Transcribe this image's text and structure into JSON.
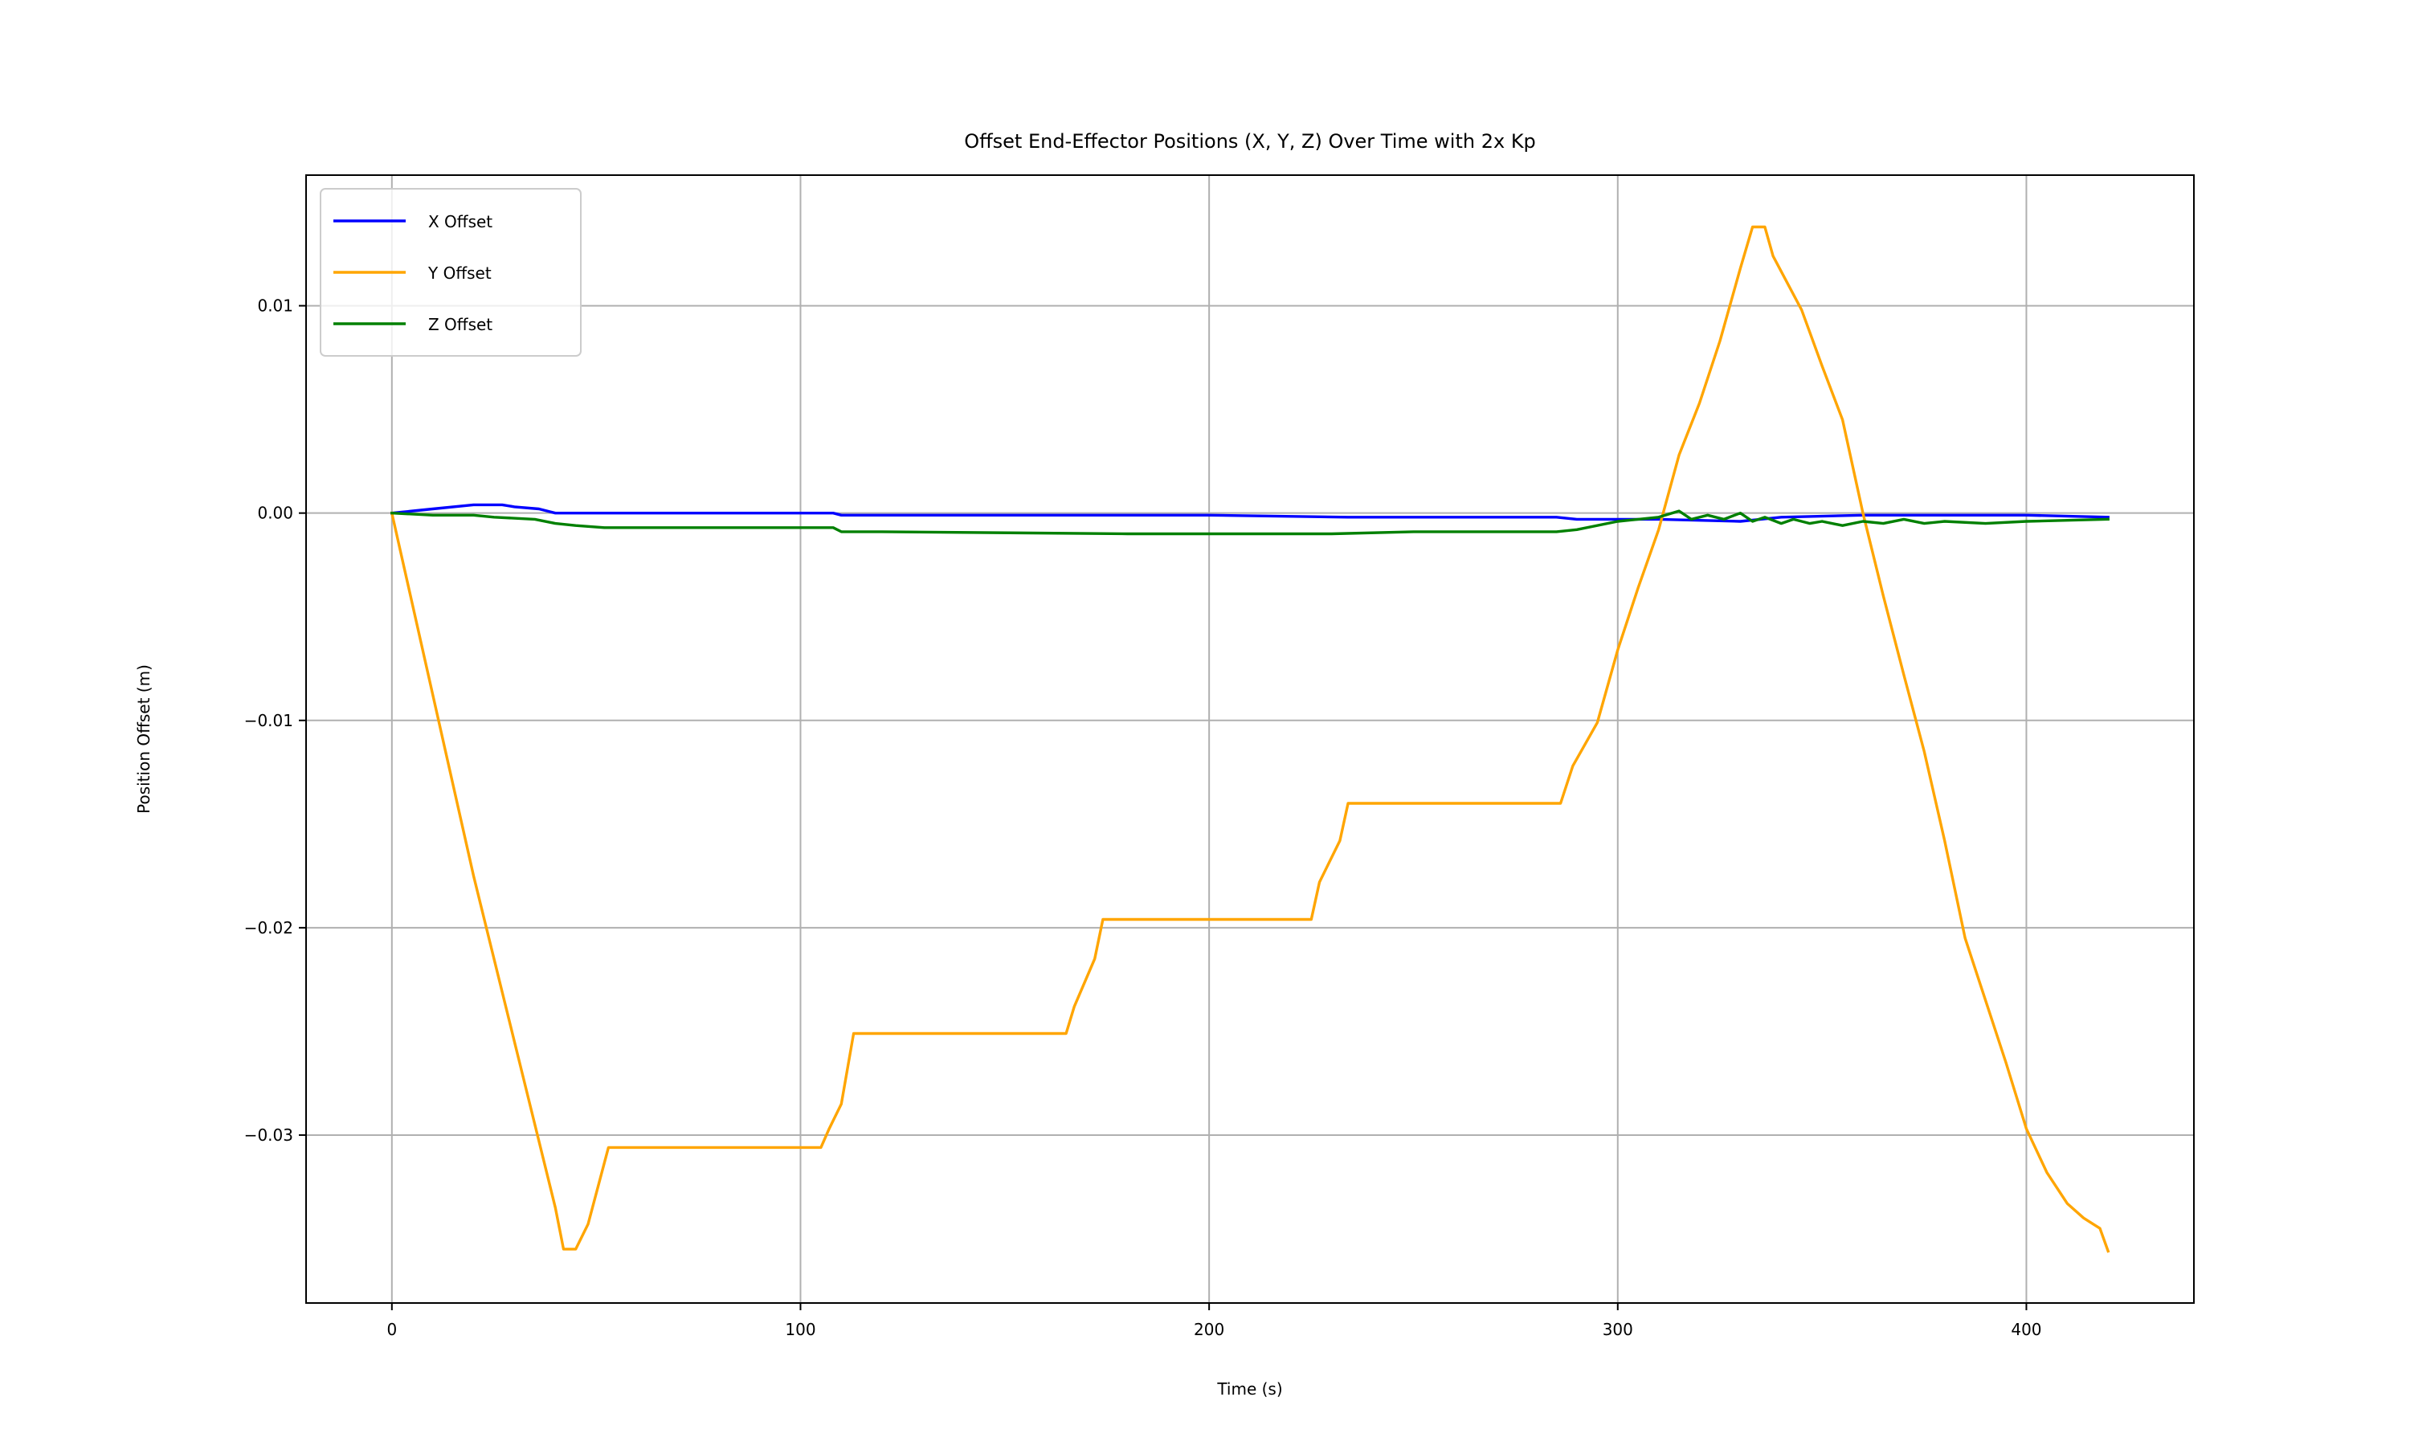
{
  "chart_data": {
    "type": "line",
    "title": "Offset End-Effector Positions (X, Y, Z) Over Time with 2x Kp",
    "xlabel": "Time (s)",
    "ylabel": "Position Offset (m)",
    "xlim": [
      -21,
      441
    ],
    "ylim": [
      -0.0381,
      0.0163
    ],
    "xticks": [
      0,
      100,
      200,
      300,
      400
    ],
    "xtick_labels": [
      "0",
      "100",
      "200",
      "300",
      "400"
    ],
    "yticks": [
      -0.03,
      -0.02,
      -0.01,
      0.0,
      0.01
    ],
    "ytick_labels": [
      "−0.03",
      "−0.02",
      "−0.01",
      "0.00",
      "0.01"
    ],
    "grid": true,
    "legend_position": "upper-left",
    "series": [
      {
        "name": "X Offset",
        "color": "#0000ff",
        "points": [
          [
            0,
            0
          ],
          [
            10,
            0.0002
          ],
          [
            20,
            0.0004
          ],
          [
            27,
            0.0004
          ],
          [
            30,
            0.0003
          ],
          [
            36,
            0.0002
          ],
          [
            40,
            0.0
          ],
          [
            52,
            0.0
          ],
          [
            108,
            0.0
          ],
          [
            110,
            -0.0001
          ],
          [
            200,
            -0.0001
          ],
          [
            234,
            -0.0002
          ],
          [
            285,
            -0.0002
          ],
          [
            290,
            -0.0003
          ],
          [
            300,
            -0.0003
          ],
          [
            310,
            -0.0003
          ],
          [
            330,
            -0.0004
          ],
          [
            340,
            -0.0002
          ],
          [
            360,
            -0.0001
          ],
          [
            380,
            -0.0001
          ],
          [
            400,
            -0.0001
          ],
          [
            420,
            -0.0002
          ]
        ]
      },
      {
        "name": "Y Offset",
        "color": "#ffa500",
        "points": [
          [
            0,
            0
          ],
          [
            20,
            -0.0175
          ],
          [
            40,
            -0.0335
          ],
          [
            42,
            -0.0355
          ],
          [
            45,
            -0.0355
          ],
          [
            48,
            -0.0343
          ],
          [
            53,
            -0.0306
          ],
          [
            105,
            -0.0306
          ],
          [
            107,
            -0.0297
          ],
          [
            110,
            -0.0285
          ],
          [
            113,
            -0.0251
          ],
          [
            165,
            -0.0251
          ],
          [
            167,
            -0.0238
          ],
          [
            172,
            -0.0215
          ],
          [
            174,
            -0.0196
          ],
          [
            225,
            -0.0196
          ],
          [
            227,
            -0.0178
          ],
          [
            232,
            -0.0158
          ],
          [
            234,
            -0.014
          ],
          [
            286,
            -0.014
          ],
          [
            289,
            -0.0122
          ],
          [
            295,
            -0.0101
          ],
          [
            300,
            -0.0066
          ],
          [
            305,
            -0.0036
          ],
          [
            310,
            -0.0008
          ],
          [
            315,
            0.0028
          ],
          [
            320,
            0.0053
          ],
          [
            325,
            0.0083
          ],
          [
            330,
            0.0118
          ],
          [
            333,
            0.0138
          ],
          [
            336,
            0.0138
          ],
          [
            338,
            0.0124
          ],
          [
            345,
            0.0098
          ],
          [
            350,
            0.0071
          ],
          [
            355,
            0.0045
          ],
          [
            360,
            0.0
          ],
          [
            365,
            -0.004
          ],
          [
            370,
            -0.0078
          ],
          [
            375,
            -0.0115
          ],
          [
            380,
            -0.0158
          ],
          [
            385,
            -0.0205
          ],
          [
            390,
            -0.0235
          ],
          [
            395,
            -0.0265
          ],
          [
            400,
            -0.0297
          ],
          [
            405,
            -0.0318
          ],
          [
            410,
            -0.0333
          ],
          [
            414,
            -0.034
          ],
          [
            418,
            -0.0345
          ],
          [
            420,
            -0.0356
          ]
        ]
      },
      {
        "name": "Z Offset",
        "color": "#008000",
        "points": [
          [
            0,
            0
          ],
          [
            10,
            -0.0001
          ],
          [
            20,
            -0.0001
          ],
          [
            25,
            -0.0002
          ],
          [
            35,
            -0.0003
          ],
          [
            40,
            -0.0005
          ],
          [
            45,
            -0.0006
          ],
          [
            52,
            -0.0007
          ],
          [
            108,
            -0.0007
          ],
          [
            110,
            -0.0009
          ],
          [
            120,
            -0.0009
          ],
          [
            180,
            -0.001
          ],
          [
            220,
            -0.001
          ],
          [
            230,
            -0.001
          ],
          [
            250,
            -0.0009
          ],
          [
            285,
            -0.0009
          ],
          [
            290,
            -0.0008
          ],
          [
            300,
            -0.0004
          ],
          [
            305,
            -0.0003
          ],
          [
            310,
            -0.0002
          ],
          [
            315,
            0.0001
          ],
          [
            318,
            -0.0003
          ],
          [
            322,
            -0.0001
          ],
          [
            326,
            -0.0003
          ],
          [
            330,
            0.0
          ],
          [
            333,
            -0.0004
          ],
          [
            336,
            -0.0002
          ],
          [
            340,
            -0.0005
          ],
          [
            343,
            -0.0003
          ],
          [
            347,
            -0.0005
          ],
          [
            350,
            -0.0004
          ],
          [
            355,
            -0.0006
          ],
          [
            360,
            -0.0004
          ],
          [
            365,
            -0.0005
          ],
          [
            370,
            -0.0003
          ],
          [
            375,
            -0.0005
          ],
          [
            380,
            -0.0004
          ],
          [
            390,
            -0.0005
          ],
          [
            400,
            -0.0004
          ],
          [
            420,
            -0.0003
          ]
        ]
      }
    ]
  }
}
